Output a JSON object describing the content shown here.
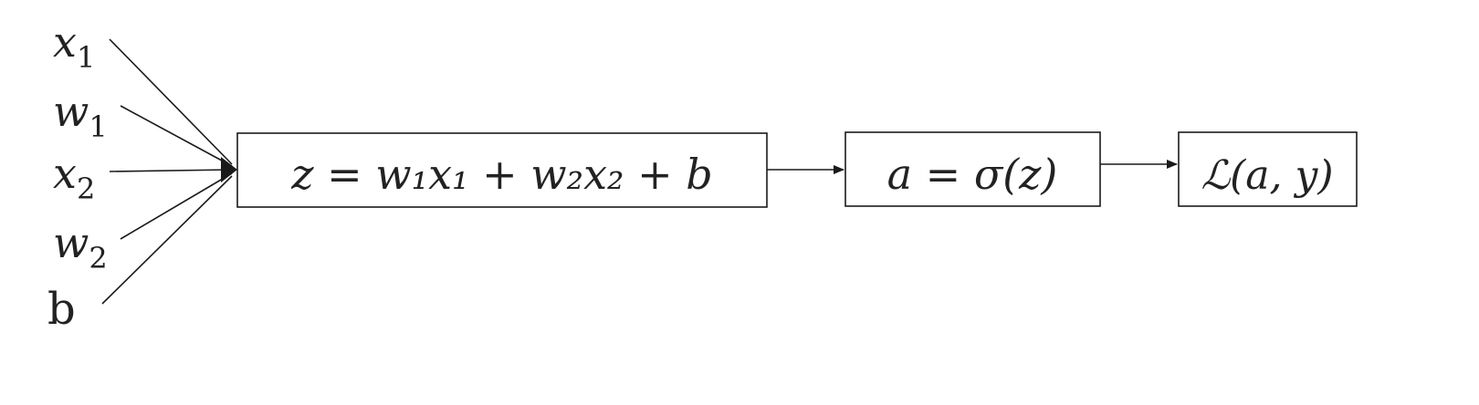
{
  "inputs": [
    {
      "base": "x",
      "sub": "1"
    },
    {
      "base": "w",
      "sub": "1"
    },
    {
      "base": "x",
      "sub": "2"
    },
    {
      "base": "w",
      "sub": "2"
    },
    {
      "base": "b",
      "sub": ""
    }
  ],
  "nodes": {
    "linear": {
      "text": "z =  w₁x₁ + w₂x₂ + b"
    },
    "activation": {
      "text": "a =  σ(z)"
    },
    "loss": {
      "text": "ℒ(a, y)"
    }
  },
  "colors": {
    "stroke": "#1a1a1a",
    "text": "#222222",
    "background": "#ffffff"
  }
}
